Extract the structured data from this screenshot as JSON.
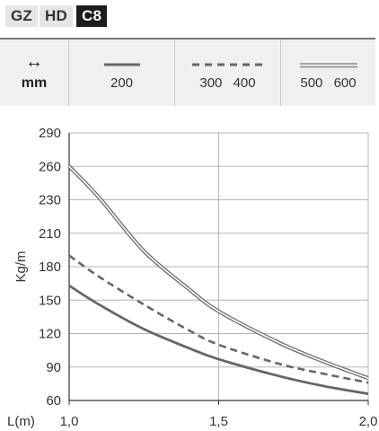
{
  "badges": [
    "GZ",
    "HD",
    "C8"
  ],
  "legend": {
    "units_icon": "horizontal-arrows-icon",
    "units_label": "mm",
    "items": [
      {
        "style": "solid",
        "label": "200"
      },
      {
        "style": "dashed",
        "label": "300  400"
      },
      {
        "style": "double",
        "label": "500  600"
      }
    ]
  },
  "colors": {
    "curve": "#666666",
    "grid": "#b5b5b5",
    "legend_bg": "#f0f0f0"
  },
  "chart_data": {
    "type": "line",
    "xlabel": "L(m)",
    "ylabel": "Kg/m",
    "xlim": [
      1.0,
      2.0
    ],
    "ylim": [
      60,
      290
    ],
    "x_ticks": [
      "1,0",
      "1,5",
      "2,0"
    ],
    "y_ticks": [
      290,
      260,
      230,
      210,
      180,
      150,
      120,
      90,
      60
    ],
    "grid": true,
    "series": [
      {
        "style": "double",
        "x": [
          1.0,
          1.1,
          1.25,
          1.4,
          1.5,
          1.7,
          1.85,
          2.0
        ],
        "y": [
          260,
          232,
          194,
          160,
          140,
          112,
          95,
          80
        ]
      },
      {
        "style": "dashed",
        "x": [
          1.0,
          1.1,
          1.25,
          1.4,
          1.5,
          1.7,
          1.85,
          2.0
        ],
        "y": [
          190,
          171,
          146,
          123,
          110,
          93,
          84,
          76
        ]
      },
      {
        "style": "solid",
        "x": [
          1.0,
          1.1,
          1.25,
          1.4,
          1.5,
          1.7,
          1.85,
          2.0
        ],
        "y": [
          163,
          146,
          124,
          107,
          97,
          82,
          73,
          66
        ]
      }
    ]
  }
}
